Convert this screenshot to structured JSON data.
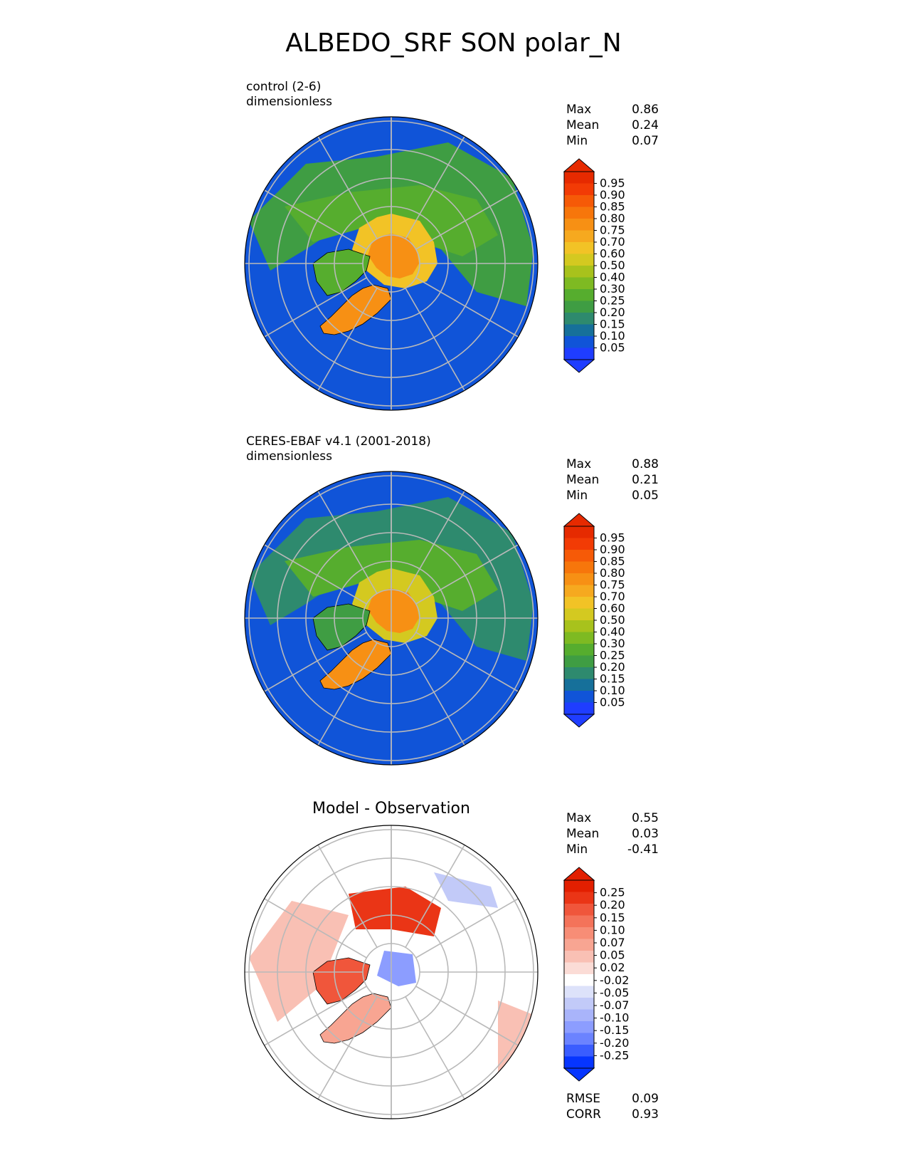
{
  "figure": {
    "title": "ALBEDO_SRF SON polar_N"
  },
  "colors": {
    "abs_levels": [
      "#1f3dff",
      "#1054d8",
      "#16709a",
      "#2e8a6e",
      "#3f9d43",
      "#56ad2e",
      "#7eba22",
      "#a8c21c",
      "#d4c920",
      "#f2c326",
      "#f6a91f",
      "#f79014",
      "#f7760b",
      "#f65a07",
      "#f23b05",
      "#e62a00"
    ],
    "diff_levels": [
      "#0635ff",
      "#3a5dff",
      "#6b83ff",
      "#8c9dff",
      "#a9b4fa",
      "#c2caf8",
      "#dde2fa",
      "#ffffff",
      "#fbdcd6",
      "#f9c0b4",
      "#f8a592",
      "#f78d76",
      "#f4735a",
      "#f0563b",
      "#ea3516",
      "#e21f00"
    ]
  },
  "chart_data": [
    {
      "id": "control",
      "type": "heatmap",
      "projection": "north-polar-stereographic",
      "title": "",
      "label_line1": "control (2-6)",
      "label_line2": "dimensionless",
      "stats": {
        "max_label": "Max",
        "max": "0.86",
        "mean_label": "Mean",
        "mean": "0.24",
        "min_label": "Min",
        "min": "0.07"
      },
      "colorbar_ticks": [
        "0.95",
        "0.90",
        "0.85",
        "0.80",
        "0.75",
        "0.70",
        "0.60",
        "0.50",
        "0.40",
        "0.30",
        "0.25",
        "0.20",
        "0.15",
        "0.10",
        "0.05"
      ],
      "field": {
        "pole_value": 0.72,
        "ice_edge": 0.62,
        "greenland": 0.72,
        "ocean": 0.08,
        "land": 0.25
      }
    },
    {
      "id": "observation",
      "type": "heatmap",
      "projection": "north-polar-stereographic",
      "title": "",
      "label_line1": "CERES-EBAF v4.1 (2001-2018)",
      "label_line2": "dimensionless",
      "stats": {
        "max_label": "Max",
        "max": "0.88",
        "mean_label": "Mean",
        "mean": "0.21",
        "min_label": "Min",
        "min": "0.05"
      },
      "colorbar_ticks": [
        "0.95",
        "0.90",
        "0.85",
        "0.80",
        "0.75",
        "0.70",
        "0.60",
        "0.50",
        "0.40",
        "0.30",
        "0.25",
        "0.20",
        "0.15",
        "0.10",
        "0.05"
      ],
      "field": {
        "pole_value": 0.7,
        "ice_edge": 0.55,
        "greenland": 0.76,
        "ocean": 0.07,
        "land": 0.2
      }
    },
    {
      "id": "difference",
      "type": "heatmap",
      "projection": "north-polar-stereographic",
      "title": "Model - Observation",
      "stats": {
        "max_label": "Max",
        "max": "0.55",
        "mean_label": "Mean",
        "mean": "0.03",
        "min_label": "Min",
        "min": "-0.41"
      },
      "colorbar_ticks": [
        "0.25",
        "0.20",
        "0.15",
        "0.10",
        "0.07",
        "0.05",
        "0.02",
        "-0.02",
        "-0.05",
        "-0.07",
        "-0.10",
        "-0.15",
        "-0.20",
        "-0.25"
      ],
      "metrics": {
        "rmse_label": "RMSE",
        "rmse": "0.09",
        "corr_label": "CORR",
        "corr": "0.93"
      }
    }
  ]
}
